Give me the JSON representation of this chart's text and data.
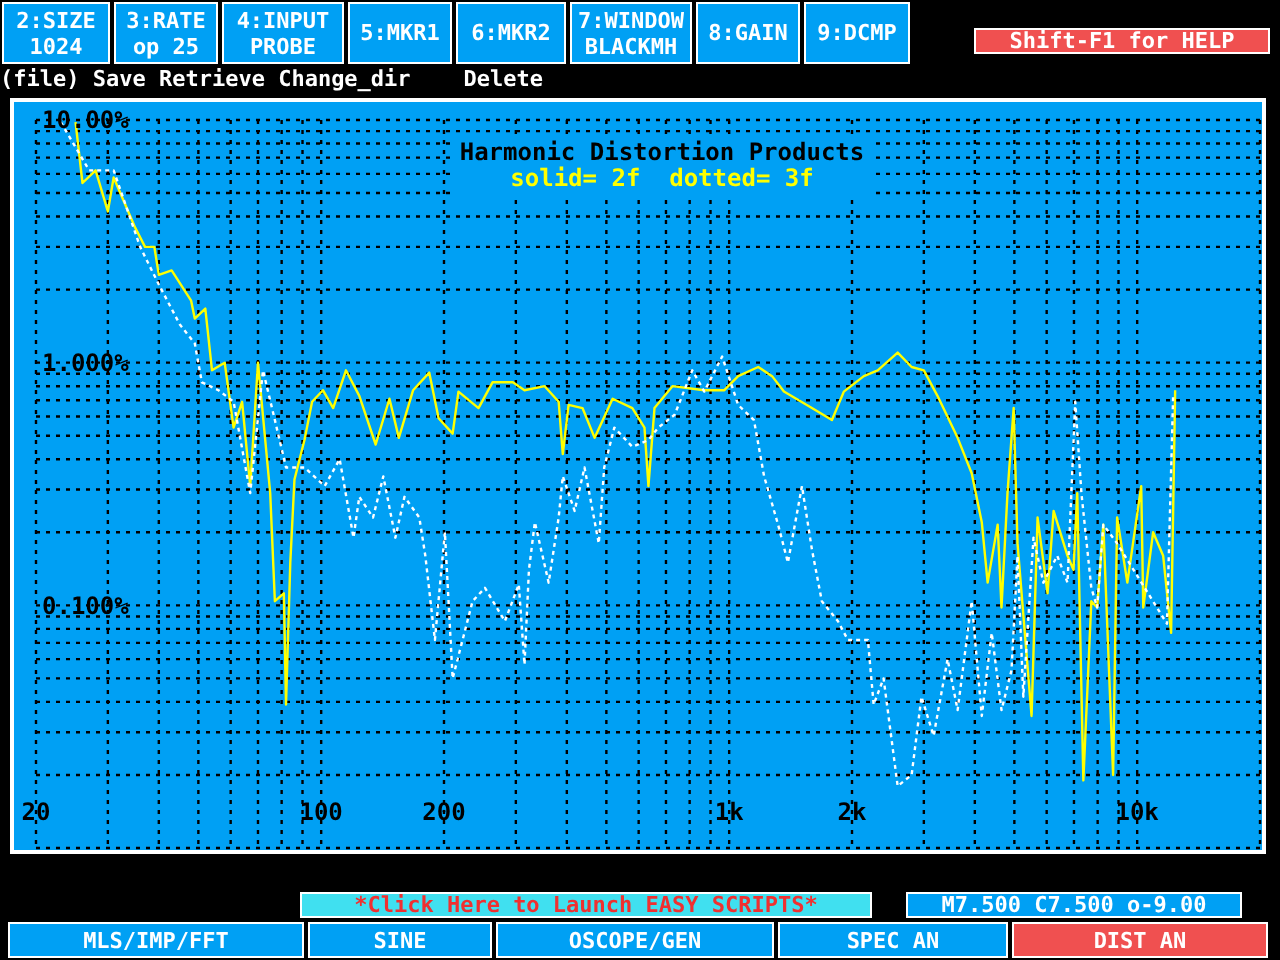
{
  "chart_data": {
    "type": "line",
    "title": "Harmonic Distortion Products",
    "subtitle": "solid= 2f  dotted= 3f",
    "annotations": [
      "2:SIZE\n1024",
      "3:RATE\nop 25",
      "4:INPUT\nPROBE",
      "5:MKR1",
      "6:MKR2",
      "7:WINDOW\nBLACKMH",
      "8:GAIN",
      "9:DCMP",
      "Shift-F1 for HELP",
      "(file) Save Retrieve Change_dir    Delete",
      "*Click Here to Launch EASY SCRIPTS*",
      "M7.500 C7.500 o-9.00",
      "MLS/IMP/FFT",
      "SINE",
      "OSCOPE/GEN",
      "SPEC AN",
      "DIST AN"
    ],
    "log": "xy",
    "grid": true,
    "xlim": [
      20,
      20000
    ],
    "xticks": [
      {
        "value": 20,
        "label": "20"
      },
      {
        "value": 30,
        "label": null
      },
      {
        "value": 40,
        "label": null
      },
      {
        "value": 50,
        "label": null
      },
      {
        "value": 60,
        "label": null
      },
      {
        "value": 70,
        "label": null
      },
      {
        "value": 80,
        "label": null
      },
      {
        "value": 90,
        "label": null
      },
      {
        "value": 100,
        "label": "100"
      },
      {
        "value": 200,
        "label": "200"
      },
      {
        "value": 300,
        "label": null
      },
      {
        "value": 400,
        "label": null
      },
      {
        "value": 500,
        "label": null
      },
      {
        "value": 600,
        "label": null
      },
      {
        "value": 700,
        "label": null
      },
      {
        "value": 800,
        "label": null
      },
      {
        "value": 900,
        "label": null
      },
      {
        "value": 1000,
        "label": "1k"
      },
      {
        "value": 2000,
        "label": "2k"
      },
      {
        "value": 3000,
        "label": null
      },
      {
        "value": 4000,
        "label": null
      },
      {
        "value": 5000,
        "label": null
      },
      {
        "value": 6000,
        "label": null
      },
      {
        "value": 7000,
        "label": null
      },
      {
        "value": 8000,
        "label": null
      },
      {
        "value": 9000,
        "label": null
      },
      {
        "value": 10000,
        "label": "10k"
      }
    ],
    "ylim": [
      0.01,
      10
    ],
    "yticks": [
      {
        "value": 0.02,
        "label": null
      },
      {
        "value": 0.03,
        "label": null
      },
      {
        "value": 0.04,
        "label": null
      },
      {
        "value": 0.05,
        "label": null
      },
      {
        "value": 0.06,
        "label": null
      },
      {
        "value": 0.07,
        "label": null
      },
      {
        "value": 0.08,
        "label": null
      },
      {
        "value": 0.09,
        "label": null
      },
      {
        "value": 0.1,
        "label": "0.100%"
      },
      {
        "value": 0.2,
        "label": null
      },
      {
        "value": 0.3,
        "label": null
      },
      {
        "value": 0.4,
        "label": null
      },
      {
        "value": 0.5,
        "label": null
      },
      {
        "value": 0.6,
        "label": null
      },
      {
        "value": 0.7,
        "label": null
      },
      {
        "value": 0.8,
        "label": null
      },
      {
        "value": 0.9,
        "label": null
      },
      {
        "value": 1,
        "label": "1.000%"
      },
      {
        "value": 2,
        "label": null
      },
      {
        "value": 3,
        "label": null
      },
      {
        "value": 4,
        "label": null
      },
      {
        "value": 5,
        "label": null
      },
      {
        "value": 6,
        "label": null
      },
      {
        "value": 7,
        "label": null
      },
      {
        "value": 8,
        "label": null
      },
      {
        "value": 9,
        "label": null
      },
      {
        "value": 10,
        "label": "10.00%"
      }
    ],
    "series": [
      {
        "color": "#ffff00",
        "line_style": "solid",
        "x": [
          25,
          26,
          28,
          30,
          31,
          35,
          37,
          39,
          40,
          43,
          48,
          49,
          52,
          54,
          58,
          61,
          64,
          67,
          70,
          75,
          77,
          81,
          82,
          84,
          86,
          91,
          95,
          101,
          107,
          115,
          124,
          136,
          147,
          155,
          168,
          184,
          194,
          210,
          217,
          243,
          263,
          295,
          315,
          353,
          382,
          391,
          404,
          437,
          468,
          518,
          579,
          620,
          634,
          656,
          726,
          869,
          973,
          1052,
          1178,
          1274,
          1362,
          1595,
          1786,
          1910,
          2138,
          2312,
          2588,
          2800,
          3000,
          3240,
          3630,
          3930,
          4160,
          4300,
          4550,
          4650,
          4810,
          4980,
          5090,
          5510,
          5700,
          6030,
          6240,
          6750,
          6980,
          7130,
          7380,
          7720,
          7980,
          8260,
          8730,
          8930,
          9460,
          10230,
          10350,
          10940,
          11580,
          12110,
          12390
        ],
        "values": [
          9.8,
          5.5,
          6.2,
          4.2,
          5.8,
          3.6,
          3.0,
          3.0,
          2.3,
          2.4,
          1.8,
          1.52,
          1.67,
          0.93,
          1.0,
          0.54,
          0.69,
          0.31,
          1.0,
          0.29,
          0.104,
          0.112,
          0.039,
          0.15,
          0.33,
          0.48,
          0.69,
          0.77,
          0.65,
          0.93,
          0.73,
          0.46,
          0.71,
          0.49,
          0.77,
          0.91,
          0.59,
          0.51,
          0.76,
          0.65,
          0.83,
          0.83,
          0.77,
          0.8,
          0.69,
          0.42,
          0.67,
          0.65,
          0.49,
          0.71,
          0.65,
          0.54,
          0.31,
          0.65,
          0.8,
          0.77,
          0.77,
          0.88,
          0.96,
          0.88,
          0.76,
          0.65,
          0.58,
          0.76,
          0.88,
          0.93,
          1.1,
          0.96,
          0.93,
          0.73,
          0.49,
          0.35,
          0.22,
          0.124,
          0.215,
          0.098,
          0.29,
          0.65,
          0.18,
          0.035,
          0.23,
          0.112,
          0.245,
          0.16,
          0.14,
          0.29,
          0.019,
          0.104,
          0.098,
          0.215,
          0.02,
          0.23,
          0.124,
          0.31,
          0.098,
          0.2,
          0.16,
          0.077,
          0.77
        ]
      },
      {
        "color": "#ffffff",
        "line_style": "dotted",
        "x": [
          23,
          27,
          31,
          36,
          40,
          45,
          49,
          51,
          56,
          61,
          67,
          72,
          77,
          82,
          91,
          102,
          111,
          120,
          124,
          134,
          142,
          152,
          160,
          174,
          180,
          190,
          201,
          210,
          235,
          252,
          282,
          305,
          315,
          323,
          334,
          361,
          382,
          391,
          418,
          442,
          479,
          494,
          523,
          579,
          634,
          670,
          735,
          812,
          869,
          961,
          1052,
          1150,
          1218,
          1318,
          1393,
          1508,
          1595,
          1687,
          1848,
          1954,
          2188,
          2260,
          2390,
          2588,
          2800,
          2960,
          3170,
          3430,
          3630,
          3930,
          4160,
          4400,
          4650,
          4920,
          5090,
          5260,
          5570,
          5890,
          6370,
          6750,
          7050,
          7300,
          7720,
          7980,
          8260,
          8930,
          11830,
          12250
        ],
        "values": [
          9.8,
          6.2,
          6.2,
          3.0,
          2.1,
          1.44,
          1.2,
          0.83,
          0.77,
          0.69,
          0.29,
          0.93,
          0.58,
          0.37,
          0.37,
          0.31,
          0.4,
          0.19,
          0.28,
          0.23,
          0.34,
          0.19,
          0.28,
          0.23,
          0.16,
          0.072,
          0.2,
          0.05,
          0.104,
          0.118,
          0.086,
          0.122,
          0.057,
          0.14,
          0.22,
          0.124,
          0.23,
          0.34,
          0.245,
          0.37,
          0.18,
          0.37,
          0.54,
          0.45,
          0.48,
          0.54,
          0.61,
          0.93,
          0.76,
          1.06,
          0.67,
          0.58,
          0.34,
          0.215,
          0.15,
          0.31,
          0.17,
          0.104,
          0.086,
          0.072,
          0.072,
          0.039,
          0.05,
          0.018,
          0.02,
          0.042,
          0.029,
          0.06,
          0.037,
          0.104,
          0.035,
          0.077,
          0.037,
          0.054,
          0.16,
          0.042,
          0.19,
          0.124,
          0.16,
          0.124,
          0.69,
          0.29,
          0.118,
          0.098,
          0.215,
          0.18,
          0.084,
          0.73
        ]
      }
    ]
  }
}
